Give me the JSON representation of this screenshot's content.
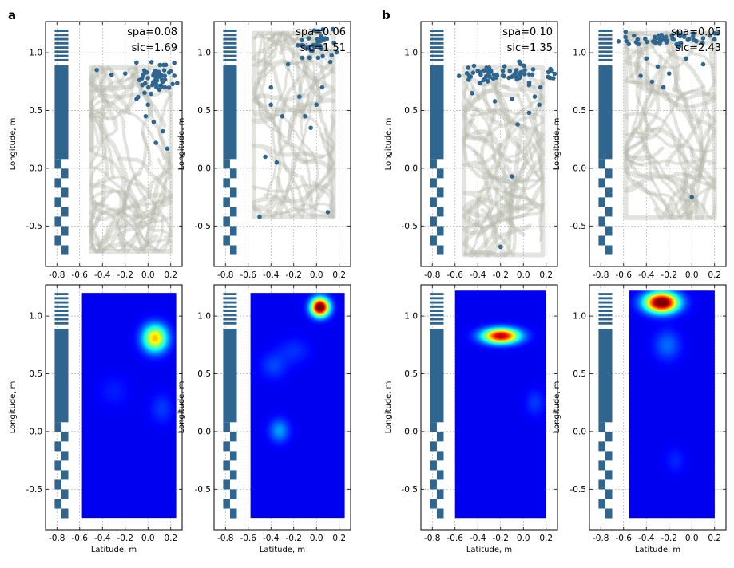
{
  "panel_labels": [
    "a",
    "b"
  ],
  "colors": {
    "track": "#b6b7ac",
    "spike": "#2f6690",
    "bar": "#2f6690",
    "grid": "#b0b0b0"
  },
  "chart_data": [
    {
      "id": "a-rat1-scatter",
      "panel": "a",
      "type": "scatter",
      "xlabel": "",
      "ylabel": "Longitude, m",
      "xlim": [
        -0.9,
        0.3
      ],
      "ylim": [
        -0.85,
        1.27
      ],
      "xticks": [
        "-0.8",
        "-0.6",
        "-0.4",
        "-0.2",
        "0.0",
        "0.2"
      ],
      "yticks": [
        "-0.5",
        "0.0",
        "0.5",
        "1.0"
      ],
      "grid": true,
      "annotations": [
        "spa=0.08",
        "sic=1.69"
      ],
      "arena": {
        "x": [
          -0.5,
          0.2
        ],
        "y": [
          -0.72,
          0.87
        ]
      },
      "spike_field": {
        "x": 0.07,
        "y": 0.78,
        "sx": 0.09,
        "sy": 0.07
      },
      "spike_count": 45,
      "spikes": [
        [
          0.05,
          0.82
        ],
        [
          0.12,
          0.8
        ],
        [
          0.08,
          0.76
        ],
        [
          -0.01,
          0.83
        ],
        [
          0.15,
          0.7
        ],
        [
          0.1,
          0.68
        ],
        [
          -0.05,
          0.72
        ],
        [
          -0.1,
          0.6
        ],
        [
          -0.2,
          0.82
        ],
        [
          -0.32,
          0.81
        ],
        [
          -0.45,
          0.85
        ],
        [
          0.13,
          0.32
        ],
        [
          0.05,
          0.4
        ],
        [
          0.17,
          0.17
        ],
        [
          0.07,
          0.22
        ],
        [
          0.0,
          0.55
        ],
        [
          -0.02,
          0.45
        ]
      ]
    },
    {
      "id": "a-rat2-scatter",
      "panel": "a",
      "type": "scatter",
      "xlabel": "",
      "ylabel": "Longitude, m",
      "xlim": [
        -0.9,
        0.3
      ],
      "ylim": [
        -0.85,
        1.27
      ],
      "xticks": [
        "-0.8",
        "-0.6",
        "-0.4",
        "-0.2",
        "0.0",
        "0.2"
      ],
      "yticks": [
        "-0.5",
        "0.0",
        "0.5",
        "1.0"
      ],
      "grid": true,
      "annotations": [
        "spa=0.06",
        "sic=1.51"
      ],
      "arena": {
        "x": [
          -0.55,
          0.15
        ],
        "y": [
          -0.42,
          1.17
        ]
      },
      "spike_field": {
        "x": 0.0,
        "y": 1.07,
        "sx": 0.09,
        "sy": 0.08
      },
      "spike_count": 40,
      "spikes": [
        [
          -0.15,
          0.62
        ],
        [
          -0.3,
          0.45
        ],
        [
          -0.4,
          0.55
        ],
        [
          -0.45,
          0.1
        ],
        [
          -0.1,
          0.45
        ],
        [
          -0.05,
          0.35
        ],
        [
          -0.35,
          0.05
        ],
        [
          -0.5,
          -0.42
        ],
        [
          0.1,
          -0.38
        ],
        [
          0.05,
          0.7
        ],
        [
          -0.25,
          0.9
        ],
        [
          -0.4,
          0.7
        ],
        [
          0.0,
          0.55
        ]
      ]
    },
    {
      "id": "b-rat1-scatter",
      "panel": "b",
      "type": "scatter",
      "xlabel": "",
      "ylabel": "Longitude, m",
      "xlim": [
        -0.9,
        0.3
      ],
      "ylim": [
        -0.85,
        1.27
      ],
      "xticks": [
        "-0.8",
        "-0.6",
        "-0.4",
        "-0.2",
        "0.0",
        "0.2"
      ],
      "yticks": [
        "-0.5",
        "0.0",
        "0.5",
        "1.0"
      ],
      "grid": true,
      "annotations": [
        "spa=0.10",
        "sic=1.35"
      ],
      "arena": {
        "x": [
          -0.52,
          0.17
        ],
        "y": [
          -0.75,
          0.87
        ]
      },
      "spike_field": {
        "x": -0.18,
        "y": 0.82,
        "sx": 0.22,
        "sy": 0.04
      },
      "spike_count": 70,
      "spikes": [
        [
          0.1,
          0.62
        ],
        [
          0.14,
          0.55
        ],
        [
          0.05,
          0.48
        ],
        [
          -0.1,
          0.6
        ],
        [
          -0.25,
          0.58
        ],
        [
          -0.45,
          0.65
        ],
        [
          -0.05,
          0.38
        ],
        [
          -0.1,
          -0.07
        ],
        [
          -0.2,
          -0.68
        ],
        [
          0.05,
          0.72
        ],
        [
          0.15,
          0.7
        ]
      ]
    },
    {
      "id": "b-rat2-scatter",
      "panel": "b",
      "type": "scatter",
      "xlabel": "",
      "ylabel": "Longitude, m",
      "xlim": [
        -0.9,
        0.3
      ],
      "ylim": [
        -0.85,
        1.27
      ],
      "xticks": [
        "-0.8",
        "-0.6",
        "-0.4",
        "-0.2",
        "0.0",
        "0.2"
      ],
      "yticks": [
        "-0.5",
        "0.0",
        "0.5",
        "1.0"
      ],
      "grid": true,
      "annotations": [
        "spa=0.05",
        "sic=2.43"
      ],
      "arena": {
        "x": [
          -0.58,
          0.2
        ],
        "y": [
          -0.43,
          1.17
        ]
      },
      "spike_field": {
        "x": -0.2,
        "y": 1.12,
        "sx": 0.25,
        "sy": 0.03
      },
      "spike_count": 55,
      "spikes": [
        [
          -0.4,
          0.95
        ],
        [
          -0.3,
          0.88
        ],
        [
          -0.2,
          0.82
        ],
        [
          -0.25,
          0.7
        ],
        [
          -0.35,
          0.75
        ],
        [
          -0.05,
          0.95
        ],
        [
          0.1,
          0.9
        ],
        [
          -0.45,
          0.8
        ],
        [
          0.0,
          -0.25
        ]
      ]
    },
    {
      "id": "a-rat1-heatmap",
      "panel": "a",
      "type": "heatmap",
      "xlabel": "Latitude, m",
      "ylabel": "Longitude, m",
      "xlim": [
        -0.9,
        0.3
      ],
      "ylim": [
        -0.85,
        1.27
      ],
      "xticks": [
        "-0.8",
        "-0.6",
        "-0.4",
        "-0.2",
        "0.0",
        "0.2"
      ],
      "yticks": [
        "-0.5",
        "0.0",
        "0.5",
        "1.0"
      ],
      "grid": true,
      "map_extent": {
        "x": [
          -0.58,
          0.25
        ],
        "y": [
          -0.75,
          1.2
        ]
      },
      "peaks": [
        {
          "x": 0.06,
          "y": 0.81,
          "sx": 0.075,
          "sy": 0.08,
          "amp": 0.58
        },
        {
          "x": 0.12,
          "y": 0.2,
          "sx": 0.07,
          "sy": 0.09,
          "amp": 0.07
        },
        {
          "x": -0.3,
          "y": 0.35,
          "sx": 0.1,
          "sy": 0.1,
          "amp": 0.04
        }
      ]
    },
    {
      "id": "a-rat2-heatmap",
      "panel": "a",
      "type": "heatmap",
      "xlabel": "Latitude, m",
      "ylabel": "Longitude, m",
      "xlim": [
        -0.9,
        0.3
      ],
      "ylim": [
        -0.85,
        1.27
      ],
      "xticks": [
        "-0.8",
        "-0.6",
        "-0.4",
        "-0.2",
        "0.0",
        "0.2"
      ],
      "yticks": [
        "-0.5",
        "0.0",
        "0.5",
        "1.0"
      ],
      "grid": true,
      "map_extent": {
        "x": [
          -0.58,
          0.25
        ],
        "y": [
          -0.75,
          1.2
        ]
      },
      "peaks": [
        {
          "x": 0.03,
          "y": 1.08,
          "sx": 0.055,
          "sy": 0.055,
          "amp": 1.0
        },
        {
          "x": -0.33,
          "y": 0.01,
          "sx": 0.06,
          "sy": 0.07,
          "amp": 0.17
        },
        {
          "x": -0.38,
          "y": 0.57,
          "sx": 0.08,
          "sy": 0.08,
          "amp": 0.08
        },
        {
          "x": -0.2,
          "y": 0.7,
          "sx": 0.1,
          "sy": 0.08,
          "amp": 0.06
        }
      ]
    },
    {
      "id": "b-rat1-heatmap",
      "panel": "b",
      "type": "heatmap",
      "xlabel": "Latitude, m",
      "ylabel": "Longitude, m",
      "xlim": [
        -0.9,
        0.3
      ],
      "ylim": [
        -0.85,
        1.27
      ],
      "xticks": [
        "-0.8",
        "-0.6",
        "-0.4",
        "-0.2",
        "0.0",
        "0.2"
      ],
      "yticks": [
        "-0.5",
        "0.0",
        "0.5",
        "1.0"
      ],
      "grid": true,
      "map_extent": {
        "x": [
          -0.6,
          0.2
        ],
        "y": [
          -0.75,
          1.22
        ]
      },
      "peaks": [
        {
          "x": -0.2,
          "y": 0.83,
          "sx": 0.11,
          "sy": 0.045,
          "amp": 0.85
        },
        {
          "x": 0.1,
          "y": 0.25,
          "sx": 0.06,
          "sy": 0.08,
          "amp": 0.07
        }
      ]
    },
    {
      "id": "b-rat2-heatmap",
      "panel": "b",
      "type": "heatmap",
      "xlabel": "Latitude, m",
      "ylabel": "Longitude, m",
      "xlim": [
        -0.9,
        0.3
      ],
      "ylim": [
        -0.85,
        1.27
      ],
      "xticks": [
        "-0.8",
        "-0.6",
        "-0.4",
        "-0.2",
        "0.0",
        "0.2"
      ],
      "yticks": [
        "-0.5",
        "0.0",
        "0.5",
        "1.0"
      ],
      "grid": true,
      "map_extent": {
        "x": [
          -0.55,
          0.2
        ],
        "y": [
          -0.75,
          1.22
        ]
      },
      "peaks": [
        {
          "x": -0.27,
          "y": 1.12,
          "sx": 0.1,
          "sy": 0.06,
          "amp": 1.0
        },
        {
          "x": -0.22,
          "y": 0.75,
          "sx": 0.08,
          "sy": 0.09,
          "amp": 0.12
        },
        {
          "x": -0.15,
          "y": -0.25,
          "sx": 0.06,
          "sy": 0.08,
          "amp": 0.05
        }
      ]
    }
  ]
}
